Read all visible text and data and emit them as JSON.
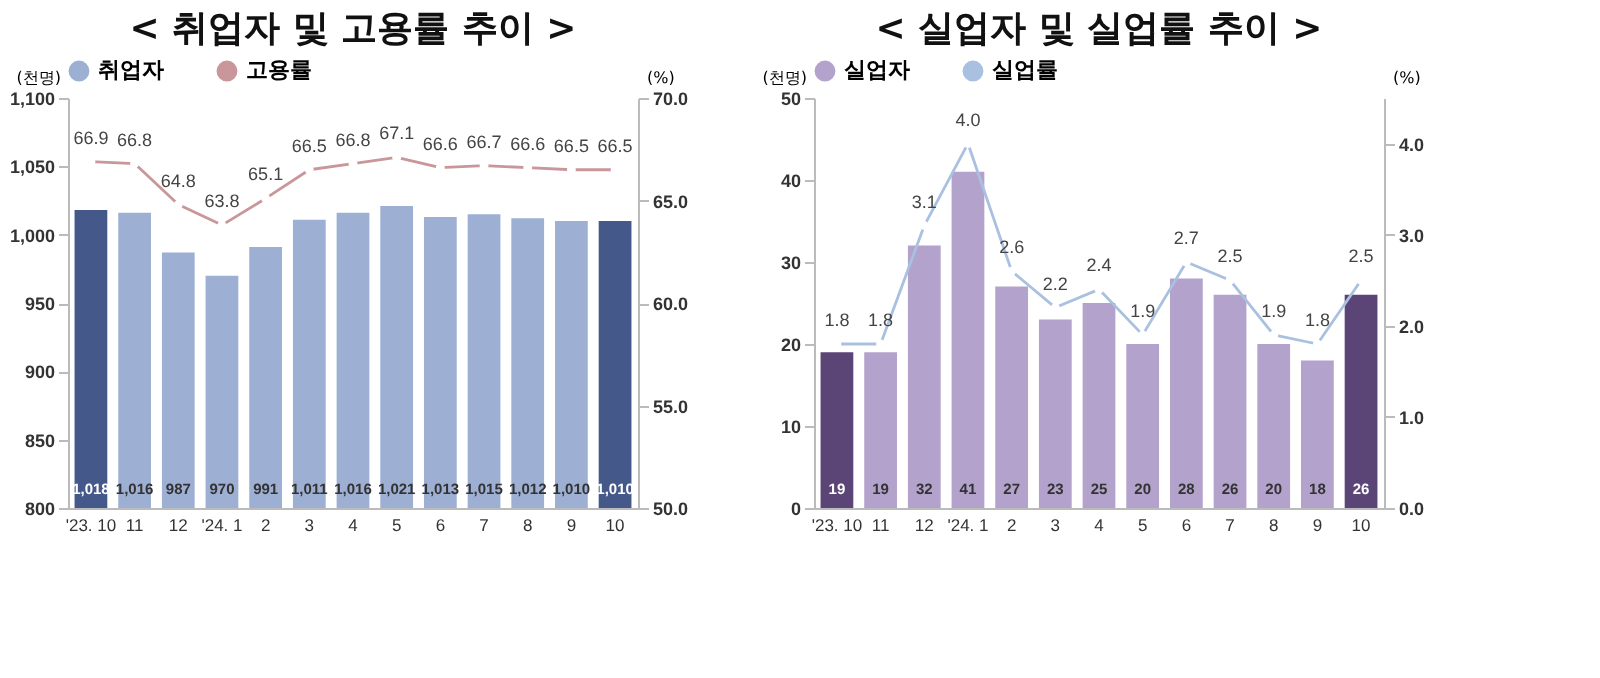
{
  "chart_data": [
    {
      "type": "bar",
      "title": "< 취업자 및 고용률 추이 >",
      "categories": [
        "'23. 10",
        "11",
        "12",
        "'24. 1",
        "2",
        "3",
        "4",
        "5",
        "6",
        "7",
        "8",
        "9",
        "10"
      ],
      "ylabel": "(천명)",
      "y2label": "(%)",
      "ylim": [
        800,
        1100
      ],
      "yticks": [
        {
          "value": 800,
          "label": "800"
        },
        {
          "value": 850,
          "label": "850"
        },
        {
          "value": 900,
          "label": "900"
        },
        {
          "value": 950,
          "label": "950"
        },
        {
          "value": 1000,
          "label": "1,000"
        },
        {
          "value": 1050,
          "label": "1,050"
        },
        {
          "value": 1100,
          "label": "1,100"
        }
      ],
      "y2lim": [
        50,
        70
      ],
      "y2ticks": [
        {
          "value": 50,
          "label": "50.0"
        },
        {
          "value": 55,
          "label": "55.0"
        },
        {
          "value": 60,
          "label": "60.0"
        },
        {
          "value": 65,
          "label": "65.0"
        },
        {
          "value": 70,
          "label": "70.0"
        }
      ],
      "legend": "top",
      "marker": "circle",
      "series": [
        {
          "name": "취업자",
          "color": "#9db0d4",
          "colors": [
            "#44598a",
            "#9db0d4",
            "#9db0d4",
            "#9db0d4",
            "#9db0d4",
            "#9db0d4",
            "#9db0d4",
            "#9db0d4",
            "#9db0d4",
            "#9db0d4",
            "#9db0d4",
            "#9db0d4",
            "#44598a"
          ],
          "values": [
            1018,
            1016,
            987,
            970,
            991,
            1011,
            1016,
            1021,
            1013,
            1015,
            1012,
            1010,
            1010
          ],
          "value_labels": [
            "1,018",
            "1,016",
            "987",
            "970",
            "991",
            "1,011",
            "1,016",
            "1,021",
            "1,013",
            "1,015",
            "1,012",
            "1,010",
            "1,010"
          ]
        },
        {
          "name": "고용률",
          "type": "line",
          "axis": "y2",
          "color": "#c9969a",
          "values": [
            66.9,
            66.8,
            64.8,
            63.8,
            65.1,
            66.5,
            66.8,
            67.1,
            66.6,
            66.7,
            66.6,
            66.5,
            66.5
          ],
          "value_labels": [
            "66.9",
            "66.8",
            "64.8",
            "63.8",
            "65.1",
            "66.5",
            "66.8",
            "67.1",
            "66.6",
            "66.7",
            "66.6",
            "66.5",
            "66.5"
          ]
        }
      ]
    },
    {
      "type": "bar",
      "title": "< 실업자 및 실업률 추이 >",
      "categories": [
        "'23. 10",
        "11",
        "12",
        "'24. 1",
        "2",
        "3",
        "4",
        "5",
        "6",
        "7",
        "8",
        "9",
        "10"
      ],
      "ylabel": "(천명)",
      "y2label": "(%)",
      "ylim": [
        0,
        50
      ],
      "yticks": [
        0,
        10,
        20,
        30,
        40,
        50
      ],
      "y2lim": [
        0,
        4.5
      ],
      "y2ticks": [
        {
          "value": 0,
          "label": "0.0"
        },
        {
          "value": 1,
          "label": "1.0"
        },
        {
          "value": 2,
          "label": "2.0"
        },
        {
          "value": 3,
          "label": "3.0"
        },
        {
          "value": 4,
          "label": "4.0"
        }
      ],
      "legend": "top",
      "marker": "circle",
      "series": [
        {
          "name": "실업자",
          "color": "#b3a2cc",
          "colors": [
            "#5b4577",
            "#b3a2cc",
            "#b3a2cc",
            "#b3a2cc",
            "#b3a2cc",
            "#b3a2cc",
            "#b3a2cc",
            "#b3a2cc",
            "#b3a2cc",
            "#b3a2cc",
            "#b3a2cc",
            "#b3a2cc",
            "#5b4577"
          ],
          "values": [
            19,
            19,
            32,
            41,
            27,
            23,
            25,
            20,
            28,
            26,
            20,
            18,
            26
          ],
          "value_labels": [
            "19",
            "19",
            "32",
            "41",
            "27",
            "23",
            "25",
            "20",
            "28",
            "26",
            "20",
            "18",
            "26"
          ]
        },
        {
          "name": "실업률",
          "type": "line",
          "axis": "y2",
          "color": "#a9c0e0",
          "values": [
            1.8,
            1.8,
            3.1,
            4.0,
            2.6,
            2.2,
            2.4,
            1.9,
            2.7,
            2.5,
            1.9,
            1.8,
            2.5
          ],
          "value_labels": [
            "1.8",
            "1.8",
            "3.1",
            "4.0",
            "2.6",
            "2.2",
            "2.4",
            "1.9",
            "2.7",
            "2.5",
            "1.9",
            "1.8",
            "2.5"
          ]
        }
      ]
    }
  ]
}
